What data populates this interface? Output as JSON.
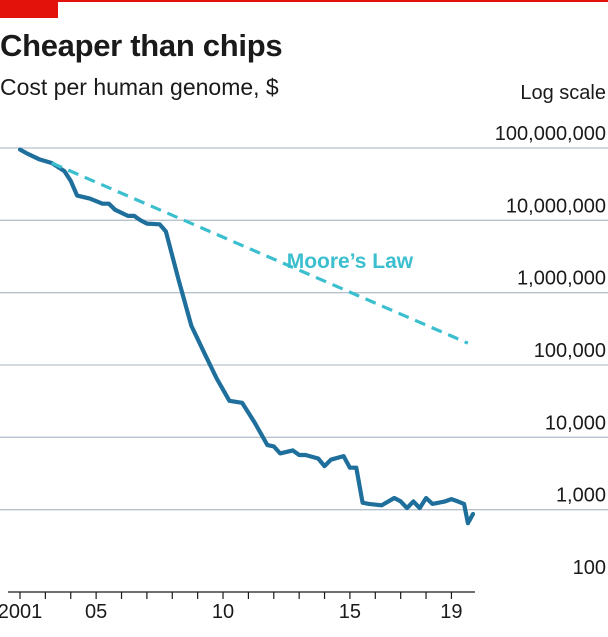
{
  "header": {
    "title": "Cheaper than chips",
    "subtitle": "Cost per human genome, $",
    "scale_note": "Log scale"
  },
  "colors": {
    "accent": "#e3120b",
    "genome_line": "#1f6f9c",
    "moore_line": "#3bbfcf",
    "grid": "#b6c3cc"
  },
  "chart_data": {
    "type": "line",
    "title": "Cheaper than chips",
    "subtitle": "Cost per human genome, $",
    "xlabel": "",
    "ylabel": "",
    "y_scale": "log",
    "ylim": [
      100,
      100000000
    ],
    "xlim": [
      2001.75,
      2019.6
    ],
    "y_ticks": [
      {
        "value": 100000000,
        "label": "100,000,000"
      },
      {
        "value": 10000000,
        "label": "10,000,000"
      },
      {
        "value": 1000000,
        "label": "1,000,000"
      },
      {
        "value": 100000,
        "label": "100,000"
      },
      {
        "value": 10000,
        "label": "10,000"
      },
      {
        "value": 1000,
        "label": "1,000"
      },
      {
        "value": 100,
        "label": "100"
      }
    ],
    "x_ticks": [
      {
        "value": 2001.75,
        "label": "2001"
      },
      {
        "value": 2005,
        "label": "05"
      },
      {
        "value": 2010,
        "label": "10"
      },
      {
        "value": 2015,
        "label": "15"
      },
      {
        "value": 2019,
        "label": "19"
      }
    ],
    "grid": true,
    "series": [
      {
        "key": "genome",
        "style": "solid",
        "points": [
          [
            2001.75,
            95000000
          ],
          [
            2002.0,
            85000000
          ],
          [
            2002.5,
            70000000
          ],
          [
            2003.0,
            62000000
          ],
          [
            2003.5,
            48000000
          ],
          [
            2003.75,
            35000000
          ],
          [
            2004.0,
            22000000
          ],
          [
            2004.5,
            20000000
          ],
          [
            2005.0,
            17000000
          ],
          [
            2005.25,
            17000000
          ],
          [
            2005.5,
            14000000
          ],
          [
            2006.0,
            11500000
          ],
          [
            2006.25,
            11500000
          ],
          [
            2006.5,
            10000000
          ],
          [
            2006.75,
            9000000
          ],
          [
            2007.25,
            8800000
          ],
          [
            2007.5,
            7000000
          ],
          [
            2008.0,
            1500000
          ],
          [
            2008.5,
            350000
          ],
          [
            2009.0,
            150000
          ],
          [
            2009.5,
            65000
          ],
          [
            2010.0,
            32000
          ],
          [
            2010.5,
            30000
          ],
          [
            2011.0,
            16000
          ],
          [
            2011.5,
            7800
          ],
          [
            2011.75,
            7500
          ],
          [
            2012.0,
            6000
          ],
          [
            2012.5,
            6600
          ],
          [
            2012.75,
            5700
          ],
          [
            2013.0,
            5700
          ],
          [
            2013.5,
            5100
          ],
          [
            2013.75,
            4000
          ],
          [
            2014.0,
            4900
          ],
          [
            2014.5,
            5500
          ],
          [
            2014.75,
            3800
          ],
          [
            2015.0,
            3800
          ],
          [
            2015.25,
            1250
          ],
          [
            2015.5,
            1200
          ],
          [
            2016.0,
            1150
          ],
          [
            2016.5,
            1450
          ],
          [
            2016.75,
            1300
          ],
          [
            2017.0,
            1050
          ],
          [
            2017.25,
            1300
          ],
          [
            2017.5,
            1050
          ],
          [
            2017.75,
            1450
          ],
          [
            2018.0,
            1200
          ],
          [
            2018.5,
            1300
          ],
          [
            2018.75,
            1400
          ],
          [
            2019.0,
            1300
          ],
          [
            2019.25,
            1200
          ],
          [
            2019.4,
            650
          ],
          [
            2019.6,
            870
          ]
        ]
      },
      {
        "key": "moore",
        "name": "Moore's Law",
        "style": "dashed",
        "points": [
          [
            2003.0,
            62000000
          ],
          [
            2019.4,
            200000
          ]
        ]
      }
    ],
    "annotations": [
      {
        "text": "Moore’s Law",
        "x": 2014.75,
        "y": 2200000
      }
    ]
  }
}
